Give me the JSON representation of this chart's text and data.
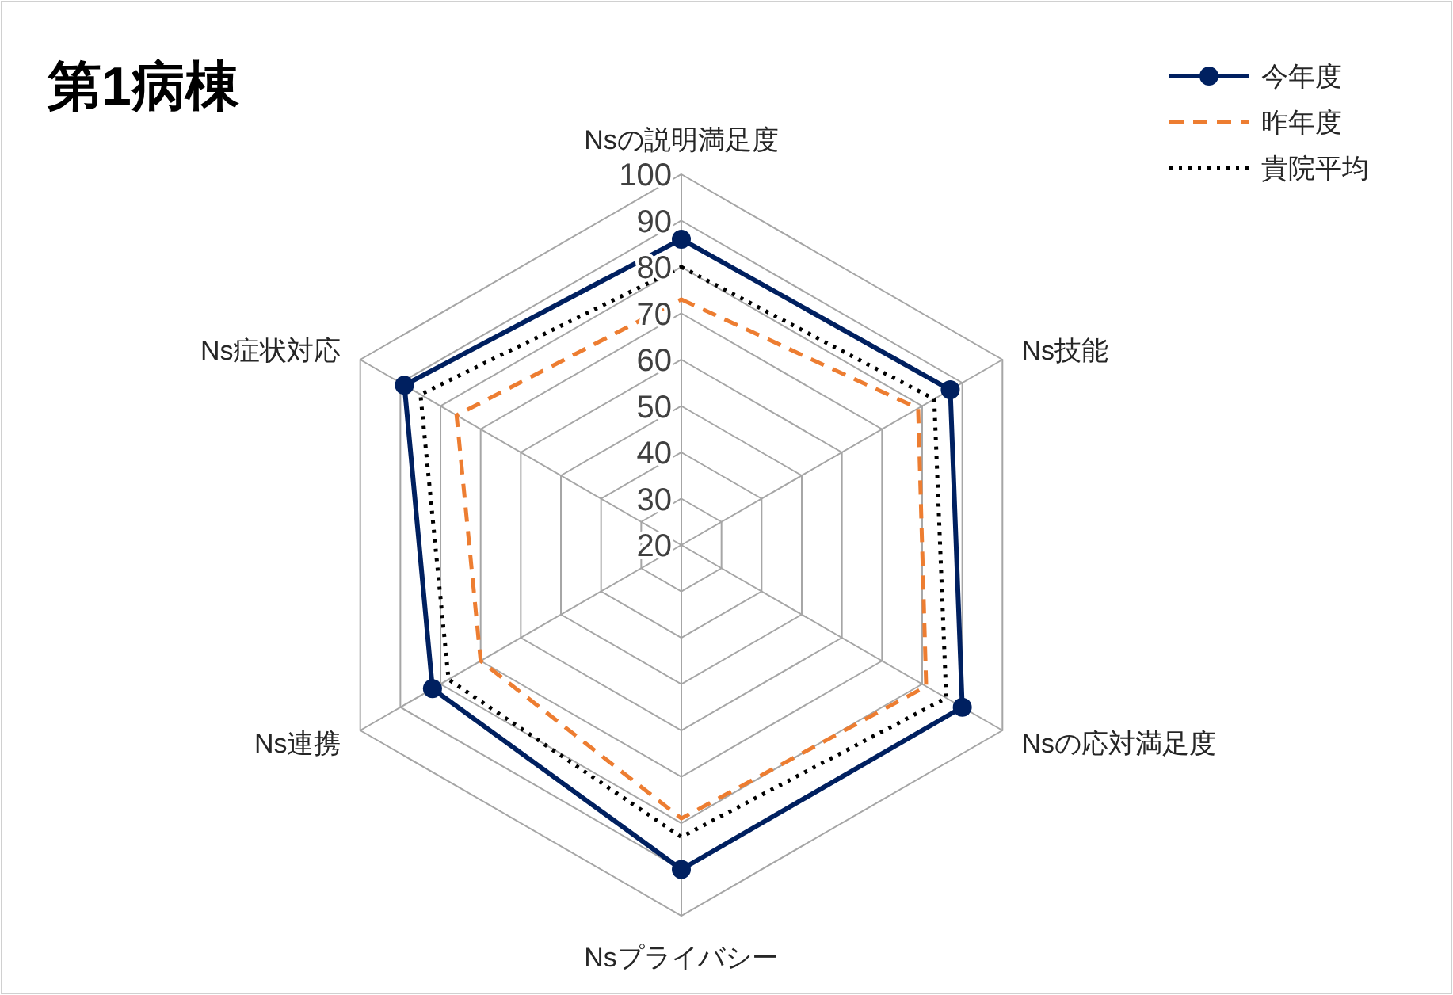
{
  "chart_data": {
    "type": "radar",
    "title": "第1病棟",
    "categories": [
      "Nsの説明満足度",
      "Ns技能",
      "Nsの応対満足度",
      "Nsプライバシー",
      "Ns連携",
      "Ns症状対応"
    ],
    "series": [
      {
        "name": "今年度",
        "color": "#002060",
        "values": [
          86,
          87,
          90,
          90,
          82,
          89
        ],
        "marker": "circle",
        "line_style": "solid"
      },
      {
        "name": "昨年度",
        "color": "#ed7d31",
        "values": [
          73,
          79,
          81,
          79,
          70,
          76
        ],
        "marker": "none",
        "line_style": "dashed"
      },
      {
        "name": "貴院平均",
        "color": "#000000",
        "values": [
          80,
          83,
          86,
          83,
          78,
          85
        ],
        "marker": "none",
        "line_style": "dotted"
      }
    ],
    "ylim": [
      20,
      100
    ],
    "yticks": [
      20,
      30,
      40,
      50,
      60,
      70,
      80,
      90,
      100
    ],
    "legend": "top right",
    "grid": true
  }
}
